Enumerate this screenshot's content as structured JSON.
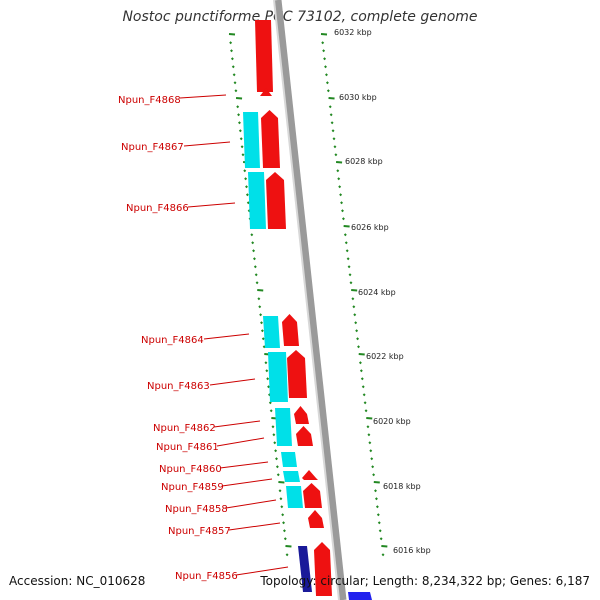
{
  "title": "Nostoc punctiforme PCC 73102, complete genome",
  "footer": {
    "accession": "Accession: NC_010628",
    "summary": "Topology: circular; Length: 8,234,322 bp; Genes: 6,187"
  },
  "scale_labels": [
    "6032 kbp",
    "6030 kbp",
    "6028 kbp",
    "6026 kbp",
    "6024 kbp",
    "6022 kbp",
    "6020 kbp",
    "6018 kbp",
    "6016 kbp"
  ],
  "gene_labels": [
    "Npun_F4868",
    "Npun_F4867",
    "Npun_F4866",
    "Npun_F4864",
    "Npun_F4863",
    "Npun_F4862",
    "Npun_F4861",
    "Npun_F4860",
    "Npun_F4859",
    "Npun_F4858",
    "Npun_F4857",
    "Npun_F4856"
  ],
  "colors": {
    "gene_forward": "#ee1111",
    "cds_feature": "#00e0e8",
    "rna_feature": "#1a1a99",
    "backbone": "#9a9a9a",
    "tick": "#228822",
    "label_line": "#cc0000",
    "strand_reverse": "#2222ee"
  }
}
